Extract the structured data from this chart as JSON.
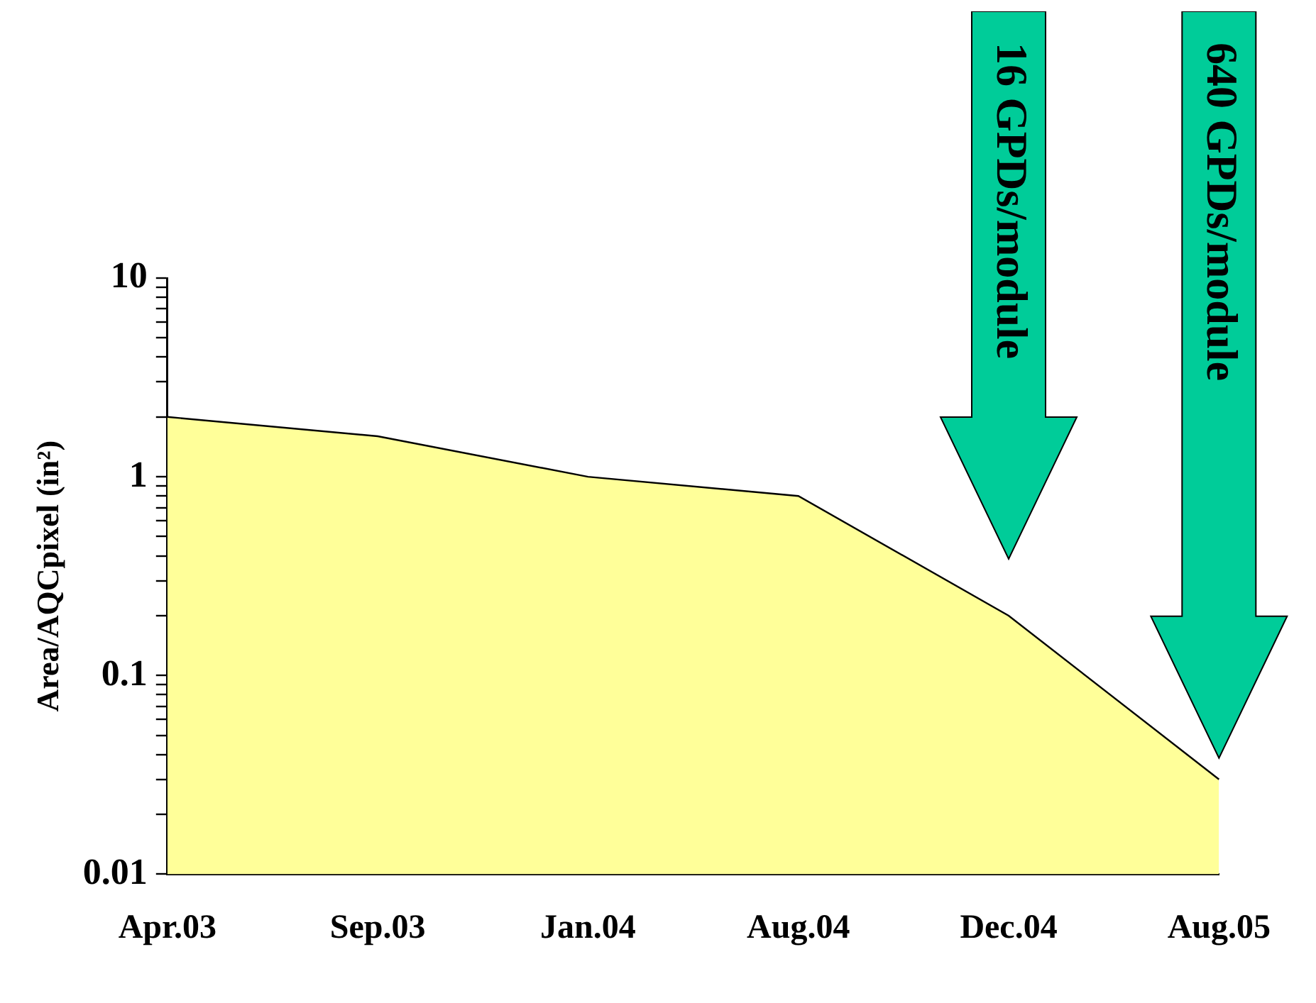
{
  "chart_data": {
    "type": "area",
    "ylabel": "Area/AQCpixel (in²)",
    "categories": [
      "Apr.03",
      "Sep.03",
      "Jan.04",
      "Aug.04",
      "Dec.04",
      "Aug.05"
    ],
    "series": [
      {
        "color": "#ffff99",
        "values": [
          2,
          1.6,
          1,
          0.8,
          0.2,
          0.03
        ]
      }
    ],
    "log": "y",
    "ylim": [
      0.01,
      10
    ],
    "yticks": [
      0.01,
      {
        "value": 0.02,
        "label": null
      },
      {
        "value": 0.03,
        "label": null
      },
      {
        "value": 0.04,
        "label": null
      },
      {
        "value": 0.05,
        "label": null
      },
      {
        "value": 0.06,
        "label": null
      },
      {
        "value": 0.07,
        "label": null
      },
      {
        "value": 0.08,
        "label": null
      },
      {
        "value": 0.09,
        "label": null
      },
      0.1,
      {
        "value": 0.2,
        "label": null
      },
      {
        "value": 0.3,
        "label": null
      },
      {
        "value": 0.4,
        "label": null
      },
      {
        "value": 0.5,
        "label": null
      },
      {
        "value": 0.6,
        "label": null
      },
      {
        "value": 0.7,
        "label": null
      },
      {
        "value": 0.8,
        "label": null
      },
      {
        "value": 0.9,
        "label": null
      },
      1,
      {
        "value": 2,
        "label": null
      },
      {
        "value": 3,
        "label": null
      },
      {
        "value": 4,
        "label": null
      },
      {
        "value": 5,
        "label": null
      },
      {
        "value": 6,
        "label": null
      },
      {
        "value": 7,
        "label": null
      },
      {
        "value": 8,
        "label": null
      },
      {
        "value": 9,
        "label": null
      },
      10
    ],
    "grid": false,
    "legend": false,
    "annotations": [
      "16 GPDs/module",
      "640 GPDs/module"
    ]
  }
}
